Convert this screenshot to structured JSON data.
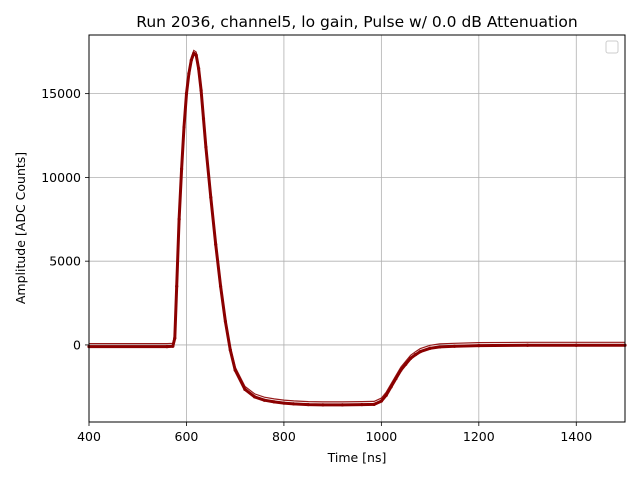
{
  "chart_data": {
    "type": "scatter",
    "title": "Run 2036, channel5, lo gain, Pulse w/ 0.0 dB Attenuation",
    "xlabel": "Time [ns]",
    "ylabel": "Amplitude [ADC Counts]",
    "xlim": [
      400,
      1500
    ],
    "ylim": [
      -4600,
      18500
    ],
    "xticks": [
      400,
      600,
      800,
      1000,
      1200,
      1400
    ],
    "yticks": [
      0,
      5000,
      10000,
      15000
    ],
    "grid": true,
    "legend": "top-right",
    "marker_color": "#8b0000",
    "series": [
      {
        "x": [
          400,
          560,
          572,
          576,
          580,
          585,
          590,
          595,
          600,
          605,
          610,
          615,
          620,
          625,
          630,
          635,
          640,
          650,
          660,
          670,
          680,
          690,
          700,
          720,
          740,
          760,
          780,
          800,
          820,
          850,
          880,
          920,
          960,
          985,
          1000,
          1010,
          1020,
          1030,
          1040,
          1050,
          1060,
          1070,
          1080,
          1100,
          1120,
          1150,
          1200,
          1300,
          1400,
          1500
        ],
        "y": [
          -100,
          -100,
          -80,
          400,
          3500,
          7500,
          10500,
          13000,
          15000,
          16200,
          17000,
          17400,
          17300,
          16500,
          15200,
          13500,
          11800,
          8800,
          6000,
          3500,
          1400,
          -300,
          -1500,
          -2650,
          -3100,
          -3300,
          -3400,
          -3470,
          -3520,
          -3560,
          -3580,
          -3580,
          -3560,
          -3550,
          -3350,
          -3000,
          -2500,
          -2000,
          -1500,
          -1150,
          -800,
          -580,
          -400,
          -200,
          -120,
          -80,
          -40,
          -20,
          -20,
          -20
        ]
      }
    ]
  }
}
